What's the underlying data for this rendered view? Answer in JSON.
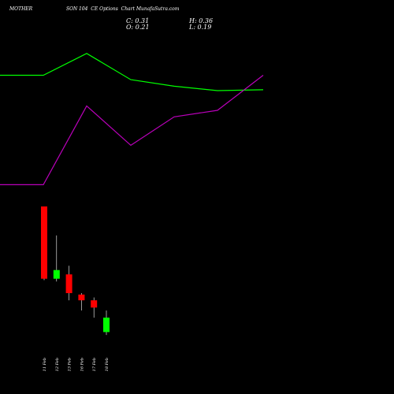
{
  "header": {
    "symbol": "MOTHERSON",
    "symbol_prefix": "MOTHER",
    "symbol_suffix": "SON",
    "description": "104  CE Options  Chart MunafaSutra.com"
  },
  "ohlc": {
    "c": "C: 0.31",
    "h": "H: 0.36",
    "o": "O: 0.21",
    "l": "L: 0.19"
  },
  "colors": {
    "up": "#00ff00",
    "down": "#ff0000",
    "green_line": "#00ff00",
    "purple_line": "#bb00bb",
    "wick": "#ffffff",
    "background": "#000000"
  },
  "chart_data": {
    "type": "candlestick",
    "categories": [
      "11 Feb",
      "12 Feb",
      "13 Feb",
      "16 Feb",
      "17 Feb",
      "18 Feb"
    ],
    "candles": [
      {
        "open": 1.08,
        "high": 1.08,
        "low": 0.57,
        "close": 0.58
      },
      {
        "open": 0.58,
        "high": 0.88,
        "low": 0.56,
        "close": 0.64
      },
      {
        "open": 0.61,
        "high": 0.67,
        "low": 0.43,
        "close": 0.48
      },
      {
        "open": 0.47,
        "high": 0.48,
        "low": 0.36,
        "close": 0.43
      },
      {
        "open": 0.43,
        "high": 0.45,
        "low": 0.31,
        "close": 0.38
      },
      {
        "open": 0.21,
        "high": 0.36,
        "low": 0.19,
        "close": 0.31
      }
    ],
    "overlay_lines": [
      {
        "color": "#00ff00",
        "values": [
          0.6,
          0.6,
          0.65,
          0.59,
          0.575,
          0.565,
          0.567
        ]
      },
      {
        "color": "#bb00bb",
        "values": [
          0.35,
          0.35,
          0.53,
          0.44,
          0.505,
          0.52,
          0.6
        ]
      }
    ]
  }
}
